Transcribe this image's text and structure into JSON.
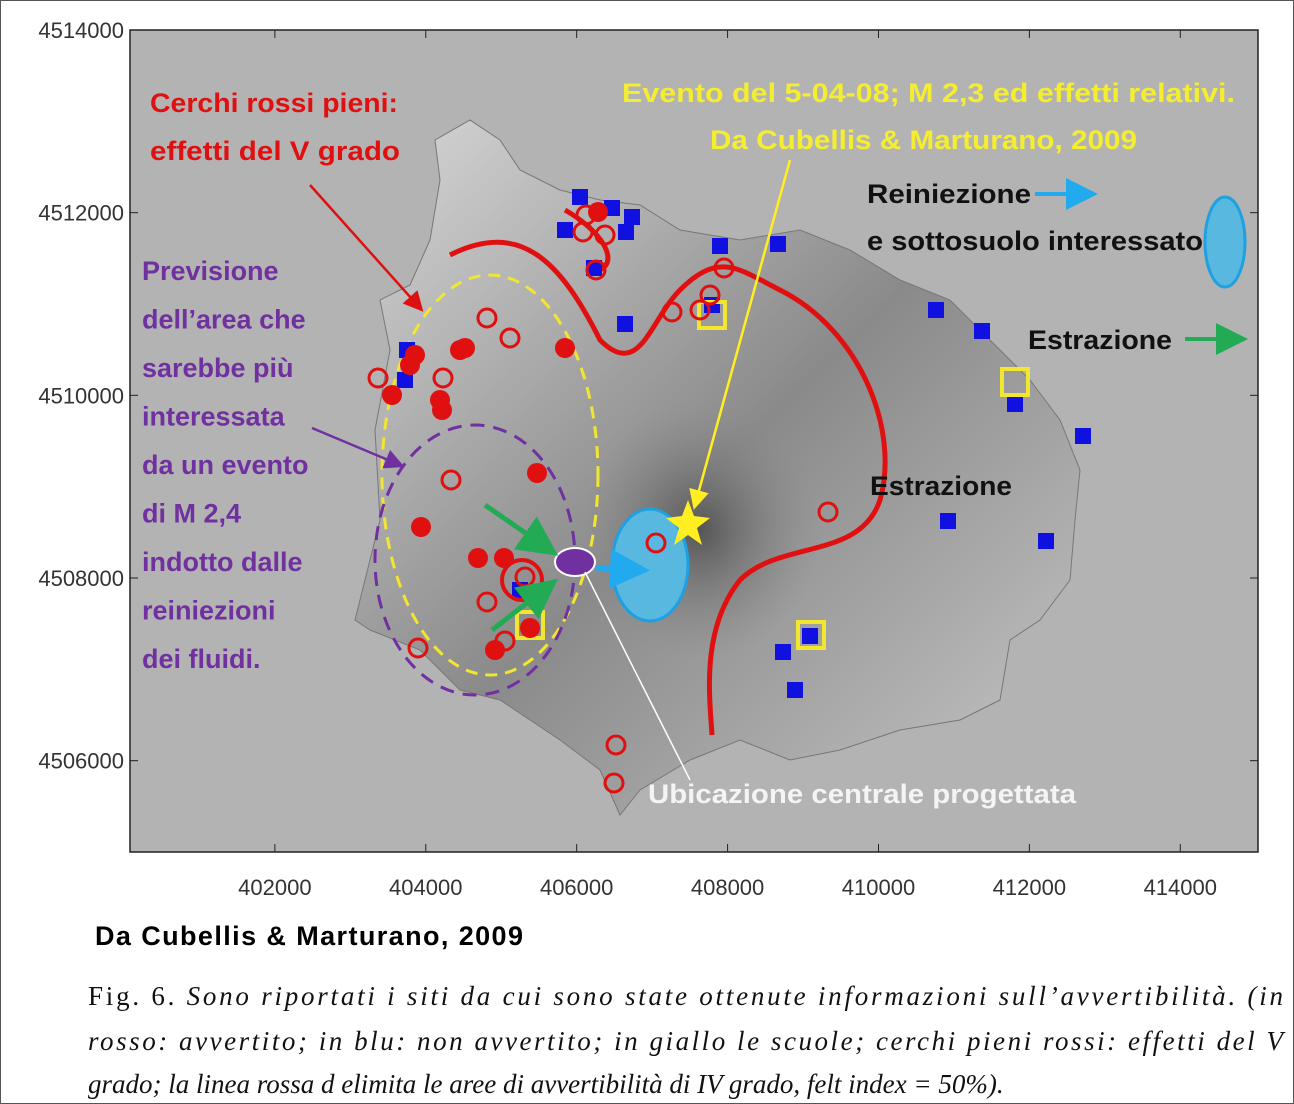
{
  "map": {
    "xlim": [
      400080,
      415030
    ],
    "ylim": [
      4505000,
      4514000
    ],
    "xticks": [
      402000,
      404000,
      406000,
      408000,
      410000,
      412000,
      414000
    ],
    "yticks": [
      4506000,
      4508000,
      4510000,
      4512000,
      4514000
    ],
    "annotations": {
      "red": [
        "Cerchi rossi pieni:",
        "effetti del V grado"
      ],
      "yellow": [
        "Evento del 5-04-08; M 2,3  ed effetti relativi.",
        "Da Cubellis & Marturano, 2009"
      ],
      "reinjection": [
        "Reiniezione",
        "e sottosuolo interessato"
      ],
      "extraction_legend": "Estrazione",
      "extraction_map": "Estrazione",
      "purple": [
        "Previsione",
        "dell’area che",
        "sarebbe più",
        "interessata",
        "da un evento",
        "di M 2,4",
        "indotto dalle",
        "reiniezioni",
        "dei fluidi."
      ],
      "plant": "Ubicazione centrale progettata"
    }
  },
  "source": "Da Cubellis & Marturano, 2009",
  "caption": {
    "label": "Fig. 6.",
    "lines": [
      "Sono riportati i siti da cui sono state ottenute informazioni sull’avvertibilità. (in",
      "rosso: avvertito; in blu: non avvertito; in giallo le scuole; cerchi pieni rossi: effetti del V",
      "grado; la linea rossa d elimita le aree di avvertibilità di IV grado, felt index = 50%)."
    ]
  }
}
